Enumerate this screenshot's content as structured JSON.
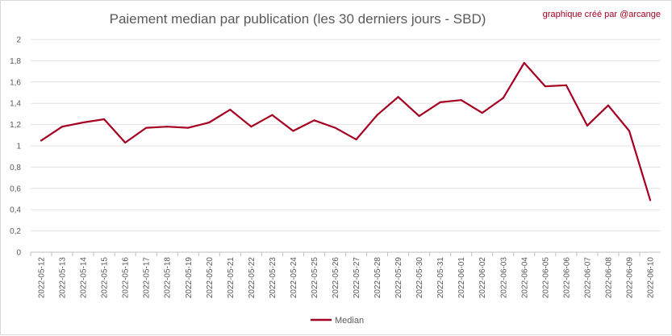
{
  "chart_data": {
    "type": "line",
    "title": "Paiement median par publication (les 30 derniers jours - SBD)",
    "credit": "graphique créé par @arcange",
    "xlabel": "",
    "ylabel": "",
    "ylim": [
      0,
      2
    ],
    "y_ticks": [
      "0",
      "0,2",
      "0,4",
      "0,6",
      "0,8",
      "1",
      "1,2",
      "1,4",
      "1,6",
      "1,8",
      "2"
    ],
    "grid": true,
    "legend_position": "bottom",
    "categories": [
      "2022-05-12",
      "2022-05-13",
      "2022-05-14",
      "2022-05-15",
      "2022-05-16",
      "2022-05-17",
      "2022-05-18",
      "2022-05-19",
      "2022-05-20",
      "2022-05-21",
      "2022-05-22",
      "2022-05-23",
      "2022-05-24",
      "2022-05-25",
      "2022-05-26",
      "2022-05-27",
      "2022-05-28",
      "2022-05-29",
      "2022-05-30",
      "2022-05-31",
      "2022-06-01",
      "2022-06-02",
      "2022-06-03",
      "2022-06-04",
      "2022-06-05",
      "2022-06-06",
      "2022-06-07",
      "2022-06-08",
      "2022-06-09",
      "2022-06-10"
    ],
    "series": [
      {
        "name": "Median",
        "color": "#a50021",
        "values": [
          1.05,
          1.18,
          1.22,
          1.25,
          1.03,
          1.17,
          1.18,
          1.17,
          1.22,
          1.34,
          1.18,
          1.29,
          1.14,
          1.24,
          1.17,
          1.06,
          1.29,
          1.46,
          1.28,
          1.41,
          1.43,
          1.31,
          1.45,
          1.78,
          1.56,
          1.57,
          1.19,
          1.38,
          1.14,
          0.49
        ]
      }
    ]
  }
}
